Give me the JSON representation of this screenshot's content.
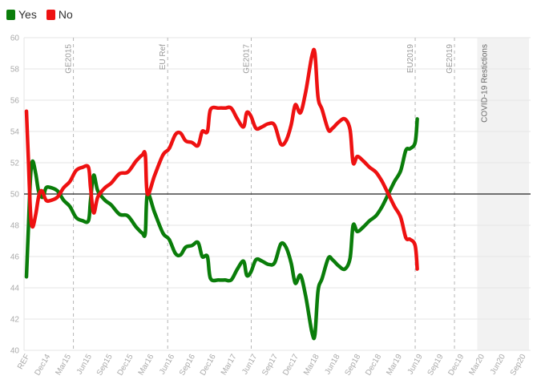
{
  "legend": {
    "yes": {
      "label": "Yes",
      "color": "#0a7d0a"
    },
    "no": {
      "label": "No",
      "color": "#ee1111"
    }
  },
  "chart_data": {
    "type": "line",
    "title": "",
    "xlabel": "",
    "ylabel": "",
    "ylim": [
      40,
      60
    ],
    "yticks": [
      40,
      42,
      44,
      46,
      48,
      50,
      52,
      54,
      56,
      58,
      60
    ],
    "grid": true,
    "legend_position": "top-left",
    "x_tick_labels": [
      "REF",
      "Dec14",
      "Mar15",
      "Jun15",
      "Sep15",
      "Dec15",
      "Mar16",
      "Jun16",
      "Sep16",
      "Dec16",
      "Mar17",
      "Jun17",
      "Sep17",
      "Dec17",
      "Mar18",
      "Jun18",
      "Sep18",
      "Dec18",
      "Mar19",
      "Jun19",
      "Sep19",
      "Dec19",
      "Mar20",
      "Jun20",
      "Sep20"
    ],
    "reference_line": 50,
    "events": [
      {
        "label": "GE2015",
        "x": 2.27
      },
      {
        "label": "EU Ref",
        "x": 6.83
      },
      {
        "label": "GE2017",
        "x": 10.87
      },
      {
        "label": "EU2019",
        "x": 18.8
      },
      {
        "label": "GE2019",
        "x": 20.7
      }
    ],
    "shaded_region": {
      "label": "COVID-19 Restictions",
      "x_start": 21.8,
      "x_end": 24.3
    },
    "series": [
      {
        "name": "Yes",
        "color": "#0a7d0a",
        "points": [
          [
            0,
            44.7
          ],
          [
            0.1,
            48.0
          ],
          [
            0.2,
            51.2
          ],
          [
            0.3,
            52.1
          ],
          [
            0.45,
            51.3
          ],
          [
            0.6,
            50.1
          ],
          [
            0.8,
            49.8
          ],
          [
            0.95,
            50.4
          ],
          [
            1.2,
            50.4
          ],
          [
            1.5,
            50.2
          ],
          [
            1.8,
            49.6
          ],
          [
            2.1,
            49.2
          ],
          [
            2.4,
            48.5
          ],
          [
            2.7,
            48.3
          ],
          [
            3.0,
            48.3
          ],
          [
            3.1,
            49.6
          ],
          [
            3.25,
            51.2
          ],
          [
            3.45,
            50.2
          ],
          [
            3.8,
            49.6
          ],
          [
            4.1,
            49.3
          ],
          [
            4.5,
            48.7
          ],
          [
            4.9,
            48.6
          ],
          [
            5.3,
            47.9
          ],
          [
            5.6,
            47.5
          ],
          [
            5.75,
            47.5
          ],
          [
            5.85,
            50.0
          ],
          [
            6.2,
            48.8
          ],
          [
            6.6,
            47.5
          ],
          [
            6.9,
            47.1
          ],
          [
            7.2,
            46.2
          ],
          [
            7.45,
            46.1
          ],
          [
            7.7,
            46.6
          ],
          [
            8.0,
            46.7
          ],
          [
            8.3,
            46.9
          ],
          [
            8.5,
            46.0
          ],
          [
            8.75,
            46.0
          ],
          [
            8.9,
            44.6
          ],
          [
            9.3,
            44.5
          ],
          [
            9.6,
            44.5
          ],
          [
            9.9,
            44.5
          ],
          [
            10.2,
            45.2
          ],
          [
            10.5,
            45.7
          ],
          [
            10.65,
            44.8
          ],
          [
            10.85,
            45.0
          ],
          [
            11.1,
            45.8
          ],
          [
            11.4,
            45.7
          ],
          [
            11.7,
            45.5
          ],
          [
            12.0,
            45.6
          ],
          [
            12.3,
            46.8
          ],
          [
            12.55,
            46.6
          ],
          [
            12.8,
            45.6
          ],
          [
            13.0,
            44.3
          ],
          [
            13.25,
            44.8
          ],
          [
            13.5,
            43.5
          ],
          [
            13.8,
            41.2
          ],
          [
            13.95,
            41.0
          ],
          [
            14.1,
            43.8
          ],
          [
            14.3,
            44.6
          ],
          [
            14.6,
            45.9
          ],
          [
            14.8,
            45.8
          ],
          [
            15.1,
            45.4
          ],
          [
            15.4,
            45.2
          ],
          [
            15.65,
            45.9
          ],
          [
            15.8,
            48.0
          ],
          [
            16.0,
            47.6
          ],
          [
            16.3,
            47.9
          ],
          [
            16.6,
            48.3
          ],
          [
            16.9,
            48.6
          ],
          [
            17.2,
            49.2
          ],
          [
            17.5,
            50.0
          ],
          [
            17.8,
            50.8
          ],
          [
            18.1,
            51.5
          ],
          [
            18.35,
            52.8
          ],
          [
            18.55,
            52.9
          ],
          [
            18.8,
            53.3
          ],
          [
            18.9,
            54.8
          ]
        ]
      },
      {
        "name": "No",
        "color": "#ee1111",
        "points": [
          [
            0,
            55.3
          ],
          [
            0.1,
            52.0
          ],
          [
            0.2,
            48.7
          ],
          [
            0.3,
            47.9
          ],
          [
            0.45,
            48.7
          ],
          [
            0.6,
            49.9
          ],
          [
            0.75,
            50.2
          ],
          [
            0.95,
            49.6
          ],
          [
            1.2,
            49.6
          ],
          [
            1.5,
            49.8
          ],
          [
            1.8,
            50.4
          ],
          [
            2.1,
            50.8
          ],
          [
            2.4,
            51.5
          ],
          [
            2.7,
            51.7
          ],
          [
            3.0,
            51.7
          ],
          [
            3.1,
            50.4
          ],
          [
            3.25,
            48.8
          ],
          [
            3.45,
            49.8
          ],
          [
            3.8,
            50.4
          ],
          [
            4.1,
            50.7
          ],
          [
            4.5,
            51.3
          ],
          [
            4.9,
            51.4
          ],
          [
            5.3,
            52.1
          ],
          [
            5.6,
            52.5
          ],
          [
            5.75,
            52.5
          ],
          [
            5.85,
            50.0
          ],
          [
            6.2,
            51.2
          ],
          [
            6.6,
            52.5
          ],
          [
            6.9,
            52.9
          ],
          [
            7.2,
            53.8
          ],
          [
            7.45,
            53.9
          ],
          [
            7.7,
            53.4
          ],
          [
            8.0,
            53.3
          ],
          [
            8.3,
            53.1
          ],
          [
            8.5,
            54.0
          ],
          [
            8.75,
            54.0
          ],
          [
            8.9,
            55.4
          ],
          [
            9.3,
            55.5
          ],
          [
            9.6,
            55.5
          ],
          [
            9.9,
            55.5
          ],
          [
            10.2,
            54.8
          ],
          [
            10.5,
            54.3
          ],
          [
            10.65,
            55.2
          ],
          [
            10.85,
            55.0
          ],
          [
            11.1,
            54.2
          ],
          [
            11.4,
            54.3
          ],
          [
            11.7,
            54.5
          ],
          [
            12.0,
            54.4
          ],
          [
            12.3,
            53.2
          ],
          [
            12.55,
            53.4
          ],
          [
            12.8,
            54.4
          ],
          [
            13.0,
            55.7
          ],
          [
            13.25,
            55.2
          ],
          [
            13.5,
            56.5
          ],
          [
            13.8,
            58.8
          ],
          [
            13.95,
            59.0
          ],
          [
            14.1,
            56.2
          ],
          [
            14.3,
            55.4
          ],
          [
            14.6,
            54.1
          ],
          [
            14.8,
            54.2
          ],
          [
            15.1,
            54.6
          ],
          [
            15.4,
            54.8
          ],
          [
            15.65,
            54.1
          ],
          [
            15.8,
            52.0
          ],
          [
            16.0,
            52.4
          ],
          [
            16.3,
            52.1
          ],
          [
            16.6,
            51.7
          ],
          [
            16.9,
            51.4
          ],
          [
            17.2,
            50.8
          ],
          [
            17.5,
            50.0
          ],
          [
            17.8,
            49.2
          ],
          [
            18.1,
            48.5
          ],
          [
            18.35,
            47.2
          ],
          [
            18.55,
            47.1
          ],
          [
            18.8,
            46.7
          ],
          [
            18.9,
            45.2
          ]
        ]
      }
    ]
  }
}
